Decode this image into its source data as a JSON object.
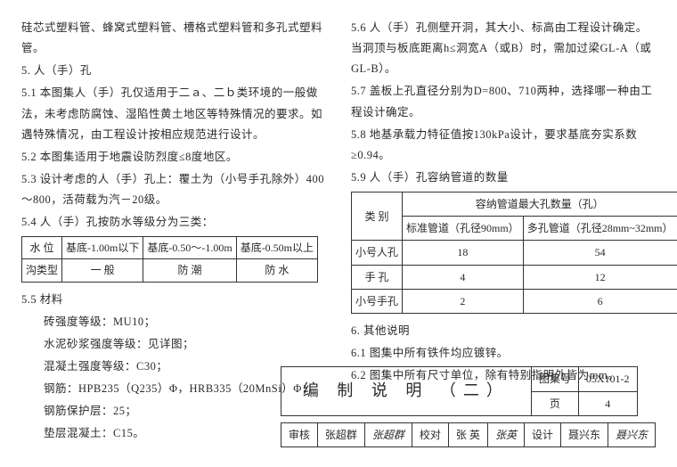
{
  "left": {
    "l0": "硅芯式塑料管、蜂窝式塑料管、槽格式塑料管和多孔式塑料管。",
    "s5": "5. 人（手）孔",
    "p51": "5.1 本图集人（手）孔仅适用于二ａ、二ｂ类环境的一般做法，未考虑防腐蚀、湿陷性黄土地区等特殊情况的要求。如遇特殊情况，由工程设计按相应规范进行设计。",
    "p52": "5.2 本图集适用于地震设防烈度≤8度地区。",
    "p53": "5.3 设计考虑的人（手）孔上：覆土为（小号手孔除外）400～800，活荷载为汽－20级。",
    "p54": "5.4 人（手）孔按防水等级分为三类：",
    "tbl1": {
      "h1": "水  位",
      "h2": "基底-1.00m以下",
      "h3": "基底-0.50～-1.00m",
      "h4": "基底-0.50m以上",
      "r1": "沟类型",
      "r2": "一  般",
      "r3": "防  潮",
      "r4": "防  水"
    },
    "p55": "5.5 材料",
    "m1": "砖强度等级：MU10；",
    "m2": "水泥砂浆强度等级：见详图；",
    "m3": "混凝土强度等级：C30；",
    "m4": "钢筋：HPB235（Q235）Φ，HRB335（20MnSi）Φ；",
    "m5": "钢筋保护层：25；",
    "m6": "垫层混凝土：C15。"
  },
  "right": {
    "p56": "5.6 人（手）孔侧壁开洞，其大小、标高由工程设计确定。当洞顶与板底距离h≤洞宽A（或B）时，需加过梁GL-A（或GL-B）。",
    "p57": "5.7 盖板上孔直径分别为D=800、710两种，选择哪一种由工程设计确定。",
    "p58": "5.8 地基承载力特征值按130kPa设计，要求基底夯实系数≥0.94。",
    "p59": "5.9 人（手）孔容纳管道的数量",
    "tbl2": {
      "h_type": "类  别",
      "h_cap": "容纳管道最大孔数量（孔）",
      "h_std": "标准管道（孔径90mm）",
      "h_multi": "多孔管道（孔径28mm~32mm）",
      "r1c1": "小号人孔",
      "r1c2": "18",
      "r1c3": "54",
      "r2c1": "手  孔",
      "r2c2": "4",
      "r2c3": "12",
      "r3c1": "小号手孔",
      "r3c2": "2",
      "r3c3": "6"
    },
    "s6": "6. 其他说明",
    "p61": "6.1 图集中所有铁件均应镀锌。",
    "p62": "6.2 图集中所有尺寸单位，除有特别指明外皆为mm。"
  },
  "footer": {
    "title": "编 制 说 明 （二）",
    "set_lbl": "图集号",
    "set_val": "05X101-2",
    "a_lbl": "审核",
    "a_name": "张超群",
    "a_sig": "张超群",
    "b_lbl": "校对",
    "b_name": "张 英",
    "b_sig": "张英",
    "c_lbl": "设计",
    "c_name": "聂兴东",
    "c_sig": "聂兴东",
    "pg_lbl": "页",
    "pg_val": "4"
  }
}
